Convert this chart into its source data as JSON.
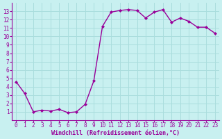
{
  "x": [
    0,
    1,
    2,
    3,
    4,
    5,
    6,
    7,
    8,
    9,
    10,
    11,
    12,
    13,
    14,
    15,
    16,
    17,
    18,
    19,
    20,
    21,
    22,
    23
  ],
  "y": [
    4.6,
    3.2,
    1.0,
    1.2,
    1.1,
    1.3,
    0.9,
    1.0,
    1.9,
    4.7,
    11.2,
    12.9,
    13.1,
    13.2,
    13.1,
    12.2,
    12.9,
    13.2,
    11.7,
    12.2,
    11.8,
    11.1,
    11.1,
    10.4
  ],
  "line_color": "#990099",
  "marker": "D",
  "marker_size": 2,
  "bg_color": "#c8f0f0",
  "grid_color": "#aadddd",
  "xlabel": "Windchill (Refroidissement éolien,°C)",
  "xlabel_color": "#990099",
  "tick_color": "#990099",
  "label_color": "#990099",
  "ylim_min": 0,
  "ylim_max": 14,
  "xlim_min": -0.5,
  "xlim_max": 23.5,
  "yticks": [
    1,
    2,
    3,
    4,
    5,
    6,
    7,
    8,
    9,
    10,
    11,
    12,
    13
  ],
  "xticks": [
    0,
    1,
    2,
    3,
    4,
    5,
    6,
    7,
    8,
    9,
    10,
    11,
    12,
    13,
    14,
    15,
    16,
    17,
    18,
    19,
    20,
    21,
    22,
    23
  ],
  "xlabel_fontsize": 6,
  "tick_fontsize": 5.5,
  "linewidth": 1.0
}
